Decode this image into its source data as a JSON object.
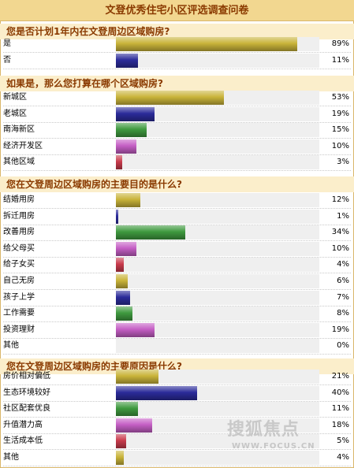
{
  "title": "文登优秀住宅小区评选调查问卷",
  "watermark": {
    "text": "搜狐焦点",
    "url": "WWW.FOCUS.CN"
  },
  "colors": {
    "yellow": "#c9b43a",
    "blue": "#2b2b9a",
    "green": "#3f9a3f",
    "magenta": "#c45ec4",
    "red": "#c93b4c",
    "header_bg": "#f2d790",
    "question_bg": "#fbeecb",
    "question_text": "#8a3a00"
  },
  "chart_data": [
    {
      "type": "bar",
      "title": "您是否计划1年内在文登周边区域购房?",
      "categories": [
        "是",
        "否"
      ],
      "values": [
        89,
        11
      ],
      "value_labels": [
        "89%",
        "11%"
      ],
      "colors": [
        "yellow",
        "blue"
      ],
      "xlim": [
        0,
        100
      ]
    },
    {
      "type": "bar",
      "title": "如果是，那么您打算在哪个区域购房?",
      "categories": [
        "新城区",
        "老城区",
        "南海新区",
        "经济开发区",
        "其他区域"
      ],
      "values": [
        53,
        19,
        15,
        10,
        3
      ],
      "value_labels": [
        "53%",
        "19%",
        "15%",
        "10%",
        "3%"
      ],
      "colors": [
        "yellow",
        "blue",
        "green",
        "magenta",
        "red"
      ],
      "xlim": [
        0,
        100
      ]
    },
    {
      "type": "bar",
      "title": "您在文登周边区域购房的主要目的是什么?",
      "categories": [
        "结婚用房",
        "拆迁用房",
        "改善用房",
        "给父母买",
        "给子女买",
        "自己无房",
        "孩子上学",
        "工作需要",
        "投资理财",
        "其他"
      ],
      "values": [
        12,
        1,
        34,
        10,
        4,
        6,
        7,
        8,
        19,
        0
      ],
      "value_labels": [
        "12%",
        "1%",
        "34%",
        "10%",
        "4%",
        "6%",
        "7%",
        "8%",
        "19%",
        "0%"
      ],
      "colors": [
        "yellow",
        "blue",
        "green",
        "magenta",
        "red",
        "yellow",
        "blue",
        "green",
        "magenta",
        "red"
      ],
      "xlim": [
        0,
        100
      ]
    },
    {
      "type": "bar",
      "title": "您在文登周边区域购房的主要原因是什么?",
      "categories": [
        "房价相对偏低",
        "生态环境较好",
        "社区配套优良",
        "升值潜力高",
        "生活成本低",
        "其他"
      ],
      "values": [
        21,
        40,
        11,
        18,
        5,
        4
      ],
      "value_labels": [
        "21%",
        "40%",
        "11%",
        "18%",
        "5%",
        "4%"
      ],
      "colors": [
        "yellow",
        "blue",
        "green",
        "magenta",
        "red",
        "yellow"
      ],
      "xlim": [
        0,
        100
      ]
    }
  ]
}
